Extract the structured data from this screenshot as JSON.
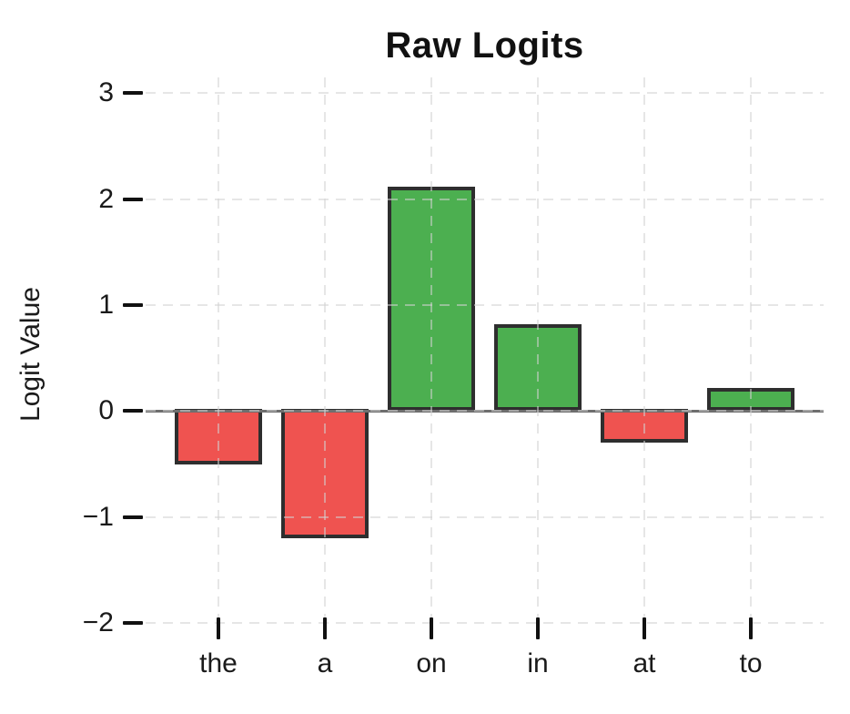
{
  "title": "Raw Logits",
  "chart_data": {
    "type": "bar",
    "title": "Raw Logits",
    "xlabel": "",
    "ylabel": "Logit Value",
    "categories": [
      "the",
      "a",
      "on",
      "in",
      "at",
      "to"
    ],
    "values": [
      -0.5,
      -1.2,
      2.1,
      0.8,
      -0.3,
      0.2
    ],
    "yticks": [
      3,
      2,
      1,
      0,
      -1,
      -2
    ],
    "ytick_labels": [
      "3",
      "2",
      "1",
      "0",
      "−1",
      "−2"
    ],
    "ylim": [
      -2.05,
      3.15
    ],
    "grid": true,
    "grid_style": "dashed",
    "legend": false,
    "colors": {
      "positive_bar": "#4caf50",
      "negative_bar": "#ef5350",
      "bar_edge": "#2e2e2e",
      "zero_line": "#6e6e6e",
      "grid_line": "#d2d2d2",
      "tick": "#111111",
      "text": "#1a1a1a",
      "background": "#ffffff"
    }
  }
}
